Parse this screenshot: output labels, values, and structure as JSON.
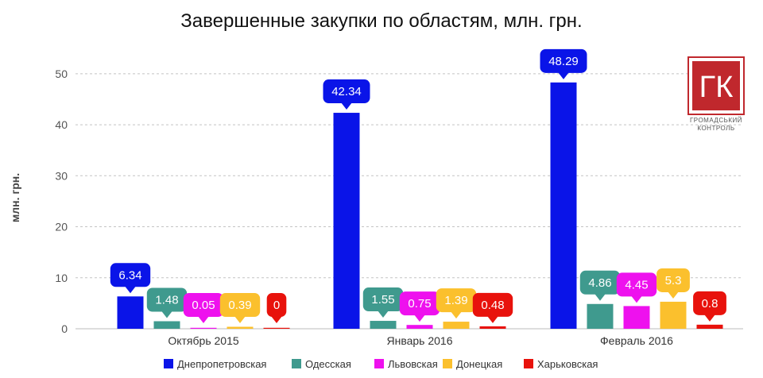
{
  "chart_data": {
    "type": "bar",
    "title": "Завершенные закупки по областям, млн. грн.",
    "ylabel": "млн. грн.",
    "xlabel": "",
    "ylim": [
      0,
      52
    ],
    "yticks": [
      0,
      10,
      20,
      30,
      40,
      50
    ],
    "grid": true,
    "legend_position": "bottom",
    "categories": [
      "Октябрь 2015",
      "Январь 2016",
      "Февраль 2016"
    ],
    "series": [
      {
        "name": "Днепропетровская",
        "color": "#0a14e8",
        "values": [
          6.34,
          42.34,
          48.29
        ],
        "labels": [
          "6.34",
          "42.34",
          "48.29"
        ]
      },
      {
        "name": "Одесская",
        "color": "#3f9a8e",
        "values": [
          1.48,
          1.55,
          4.86
        ],
        "labels": [
          "1.48",
          "1.55",
          "4.86"
        ]
      },
      {
        "name": "Львовская",
        "color": "#ee11ee",
        "values": [
          0.05,
          0.75,
          4.45
        ],
        "labels": [
          "0.05",
          "0.75",
          "4.45"
        ]
      },
      {
        "name": "Донецкая",
        "color": "#fbc02d",
        "values": [
          0.39,
          1.39,
          5.3
        ],
        "labels": [
          "0.39",
          "1.39",
          "5.3"
        ]
      },
      {
        "name": "Харьковская",
        "color": "#e8120c",
        "values": [
          0,
          0.48,
          0.8
        ],
        "labels": [
          "0",
          "0.48",
          "0.8"
        ]
      }
    ]
  },
  "logo": {
    "mark": "ГК",
    "line1": "ГРОМАДСЬКИЙ",
    "line2": "КОНТРОЛЬ",
    "color": "#c0282d"
  }
}
